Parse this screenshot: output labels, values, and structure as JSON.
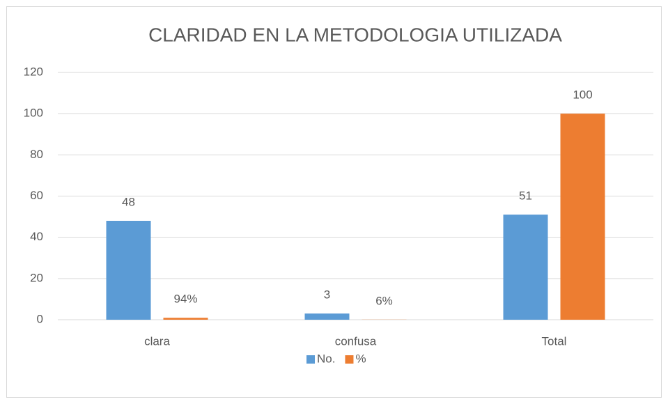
{
  "chart_data": {
    "type": "bar",
    "title": "CLARIDAD EN LA METODOLOGIA UTILIZADA",
    "categories": [
      "clara",
      "confusa",
      "Total"
    ],
    "series": [
      {
        "name": "No.",
        "color": "#5b9bd5",
        "values": [
          48,
          3,
          51
        ]
      },
      {
        "name": "%",
        "color": "#ed7d31",
        "values": [
          0.94,
          0.06,
          100
        ],
        "value_labels": [
          "94%",
          "6%",
          "100"
        ]
      }
    ],
    "ylim": [
      0,
      120
    ],
    "yticks": [
      0,
      20,
      40,
      60,
      80,
      100,
      120
    ],
    "grid": true,
    "legend": "bottom"
  }
}
